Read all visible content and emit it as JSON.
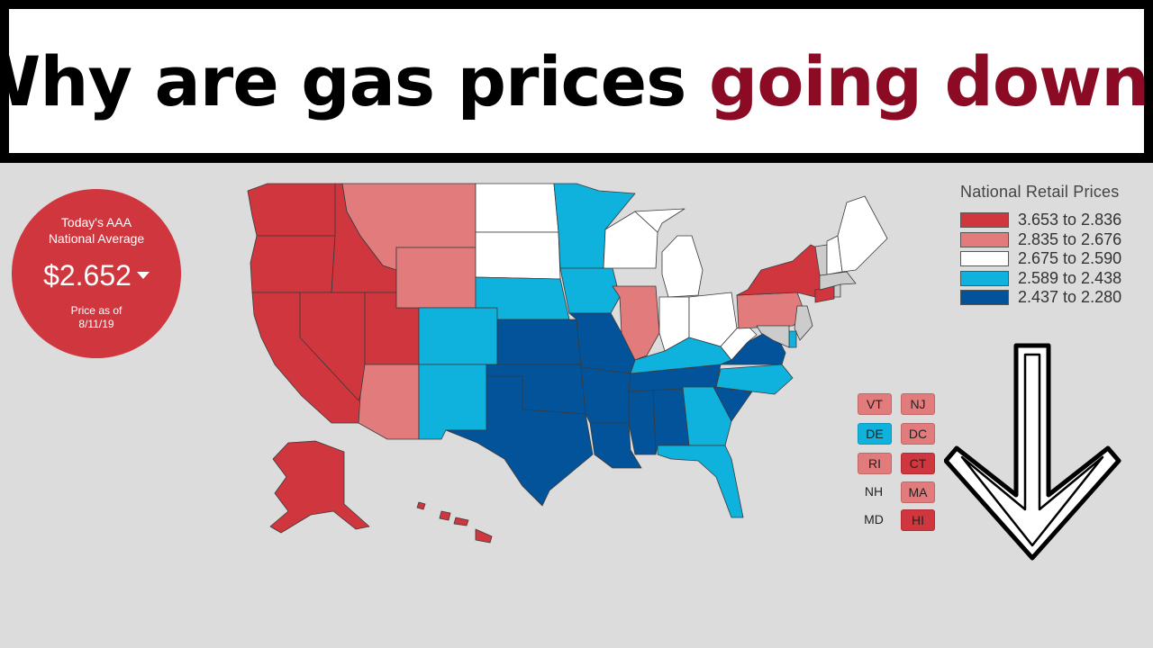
{
  "title": {
    "prefix": "Why are gas prices ",
    "highlight": "going down",
    "suffix": "?"
  },
  "national_average": {
    "label_line1": "Today's AAA",
    "label_line2": "National Average",
    "price": "$2.652",
    "trend_icon": "caret-down-icon",
    "date_line1": "Price as of",
    "date_line2": "8/11/19"
  },
  "colors": {
    "band1": "#d0363d",
    "band2": "#e17b7c",
    "band3": "#ffffff",
    "band4": "#0fb2dc",
    "band5": "#03539a",
    "title_highlight": "#8b0a24"
  },
  "legend": {
    "title": "National Retail Prices",
    "items": [
      {
        "label": "3.653 to 2.836",
        "color": "#d0363d"
      },
      {
        "label": "2.835 to 2.676",
        "color": "#e17b7c"
      },
      {
        "label": "2.675 to 2.590",
        "color": "#ffffff"
      },
      {
        "label": "2.589 to 2.438",
        "color": "#0fb2dc"
      },
      {
        "label": "2.437 to 2.280",
        "color": "#03539a"
      }
    ]
  },
  "small_states": [
    {
      "code": "VT",
      "band": 2
    },
    {
      "code": "NJ",
      "band": 2
    },
    {
      "code": "DE",
      "band": 4
    },
    {
      "code": "DC",
      "band": 2
    },
    {
      "code": "RI",
      "band": 2
    },
    {
      "code": "CT",
      "band": 1
    },
    {
      "code": "NH",
      "band": 3
    },
    {
      "code": "MA",
      "band": 2
    },
    {
      "code": "MD",
      "band": 3
    },
    {
      "code": "HI",
      "band": 1
    }
  ],
  "map_states": [
    {
      "code": "WA",
      "band": 1
    },
    {
      "code": "OR",
      "band": 1
    },
    {
      "code": "CA",
      "band": 1
    },
    {
      "code": "NV",
      "band": 1
    },
    {
      "code": "ID",
      "band": 1
    },
    {
      "code": "UT",
      "band": 1
    },
    {
      "code": "AK",
      "band": 1
    },
    {
      "code": "HI",
      "band": 1
    },
    {
      "code": "MT",
      "band": 2
    },
    {
      "code": "WY",
      "band": 2
    },
    {
      "code": "AZ",
      "band": 2
    },
    {
      "code": "IL",
      "band": 2
    },
    {
      "code": "PA",
      "band": 2
    },
    {
      "code": "NY",
      "band": 1
    },
    {
      "code": "CT",
      "band": 1
    },
    {
      "code": "ND",
      "band": 3
    },
    {
      "code": "SD",
      "band": 3
    },
    {
      "code": "WI",
      "band": 3
    },
    {
      "code": "MI",
      "band": 3
    },
    {
      "code": "IN",
      "band": 3
    },
    {
      "code": "OH",
      "band": 3
    },
    {
      "code": "WV",
      "band": 3
    },
    {
      "code": "ME",
      "band": 3
    },
    {
      "code": "NH",
      "band": 3
    },
    {
      "code": "MN",
      "band": 4
    },
    {
      "code": "IA",
      "band": 4
    },
    {
      "code": "NE",
      "band": 4
    },
    {
      "code": "CO",
      "band": 4
    },
    {
      "code": "NM",
      "band": 4
    },
    {
      "code": "KY",
      "band": 4
    },
    {
      "code": "NC",
      "band": 4
    },
    {
      "code": "GA",
      "band": 4
    },
    {
      "code": "FL",
      "band": 4
    },
    {
      "code": "DE",
      "band": 4
    },
    {
      "code": "KS",
      "band": 5
    },
    {
      "code": "MO",
      "band": 5
    },
    {
      "code": "OK",
      "band": 5
    },
    {
      "code": "TX",
      "band": 5
    },
    {
      "code": "AR",
      "band": 5
    },
    {
      "code": "LA",
      "band": 5
    },
    {
      "code": "MS",
      "band": 5
    },
    {
      "code": "AL",
      "band": 5
    },
    {
      "code": "TN",
      "band": 5
    },
    {
      "code": "SC",
      "band": 5
    },
    {
      "code": "VA",
      "band": 5
    }
  ]
}
